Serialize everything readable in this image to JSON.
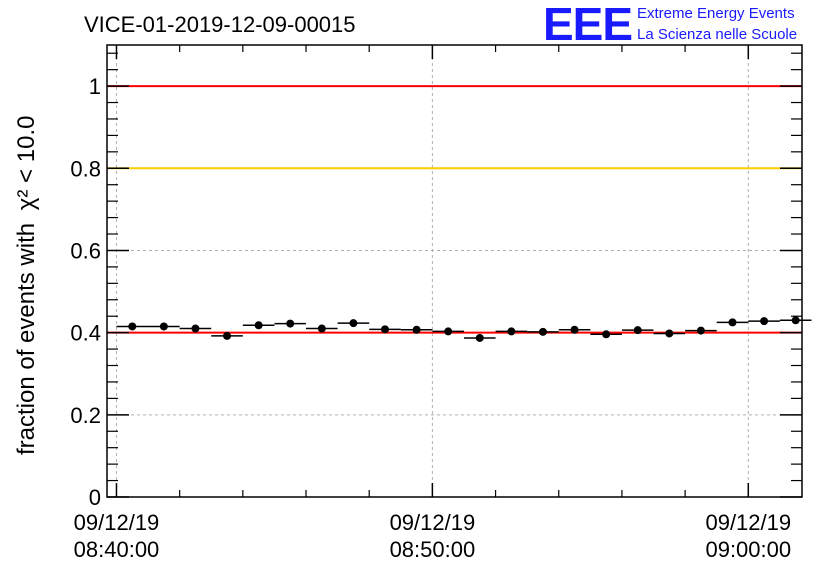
{
  "chart_data": {
    "type": "scatter",
    "title": "VICE-01-2019-12-09-00015",
    "ylabel": "fraction of events with",
    "ylabel_math": "χ² < 10.0",
    "xlabel": "",
    "ylim": [
      0,
      1.1
    ],
    "xlim_minutes": [
      -0.3,
      21.7
    ],
    "y_ticks": [
      0,
      0.2,
      0.4,
      0.6,
      0.8,
      1
    ],
    "y_tick_labels": [
      "0",
      "0.2",
      "0.4",
      "0.6",
      "0.8",
      "1"
    ],
    "x_ticks": [
      {
        "minute": 0,
        "date": "09/12/19",
        "time": "08:40:00"
      },
      {
        "minute": 10,
        "date": "09/12/19",
        "time": "08:50:00"
      },
      {
        "minute": 20,
        "date": "09/12/19",
        "time": "09:00:00"
      }
    ],
    "bin_width_minutes": 1,
    "series": [
      {
        "name": "fraction",
        "x": [
          0.5,
          1.5,
          2.5,
          3.5,
          4.5,
          5.5,
          6.5,
          7.5,
          8.5,
          9.5,
          10.5,
          11.5,
          12.5,
          13.5,
          14.5,
          15.5,
          16.5,
          17.5,
          18.5,
          19.5,
          20.5,
          21.5
        ],
        "y": [
          0.415,
          0.415,
          0.41,
          0.392,
          0.418,
          0.422,
          0.41,
          0.423,
          0.408,
          0.407,
          0.403,
          0.387,
          0.403,
          0.402,
          0.407,
          0.396,
          0.406,
          0.398,
          0.405,
          0.425,
          0.428,
          0.43
        ]
      }
    ],
    "reference_lines": [
      {
        "y": 1.0,
        "color": "#ff0000"
      },
      {
        "y": 0.8,
        "color": "#ffcc00"
      },
      {
        "y": 0.4,
        "color": "#ff0000"
      }
    ]
  },
  "logo": {
    "mark": "EEE",
    "line1": "Extreme Energy Events",
    "line2": "La Scienza nelle Scuole",
    "color": "#1a1aff"
  }
}
